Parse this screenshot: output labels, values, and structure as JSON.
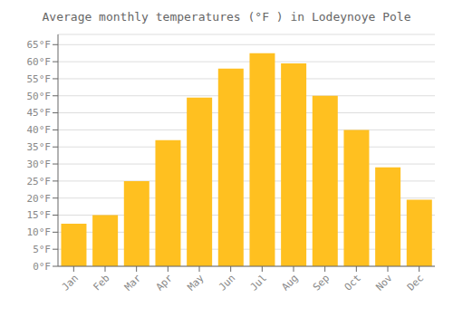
{
  "chart_data": {
    "type": "bar",
    "title": "Average monthly temperatures (°F ) in Lodeynoye Pole",
    "categories": [
      "Jan",
      "Feb",
      "Mar",
      "Apr",
      "May",
      "Jun",
      "Jul",
      "Aug",
      "Sep",
      "Oct",
      "Nov",
      "Dec"
    ],
    "values": [
      12.5,
      15,
      25,
      37,
      49.5,
      58,
      62.5,
      59.5,
      50,
      40,
      29,
      19.5
    ],
    "color": "#FFC020",
    "ylim": [
      0,
      68
    ],
    "yticks": [
      {
        "value": 0,
        "label": "0°F"
      },
      {
        "value": 5,
        "label": "5°F"
      },
      {
        "value": 10,
        "label": "10°F"
      },
      {
        "value": 15,
        "label": "15°F"
      },
      {
        "value": 20,
        "label": "20°F"
      },
      {
        "value": 25,
        "label": "25°F"
      },
      {
        "value": 30,
        "label": "30°F"
      },
      {
        "value": 35,
        "label": "35°F"
      },
      {
        "value": 40,
        "label": "40°F"
      },
      {
        "value": 45,
        "label": "45°F"
      },
      {
        "value": 50,
        "label": "50°F"
      },
      {
        "value": 55,
        "label": "55°F"
      },
      {
        "value": 60,
        "label": "60°F"
      },
      {
        "value": 65,
        "label": "65°F"
      }
    ],
    "grid": true
  }
}
